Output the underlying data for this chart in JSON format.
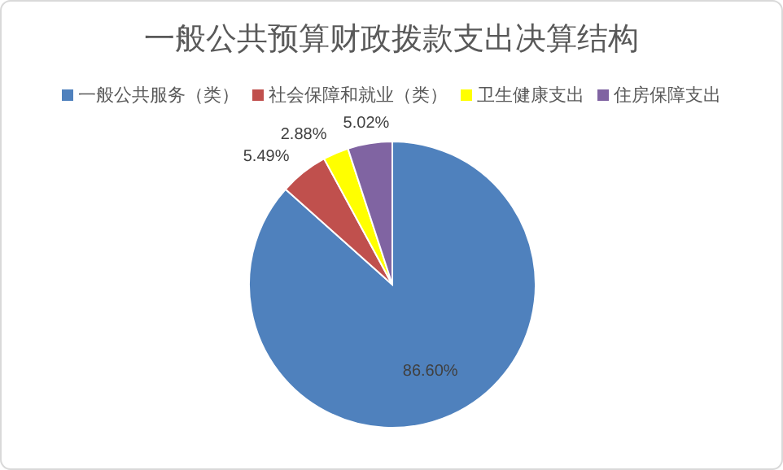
{
  "chart_data": {
    "type": "pie",
    "title": "一般公共预算财政拨款支出决算结构",
    "categories": [
      "一般公共服务（类）",
      "社会保障和就业（类）",
      "卫生健康支出",
      "住房保障支出"
    ],
    "values": [
      86.6,
      5.49,
      2.88,
      5.02
    ],
    "colors": [
      "#4f81bd",
      "#c0504d",
      "#ffff00",
      "#8064a2"
    ],
    "value_labels": [
      "86.60%",
      "5.49%",
      "2.88%",
      "5.02%"
    ],
    "legend": "top"
  }
}
